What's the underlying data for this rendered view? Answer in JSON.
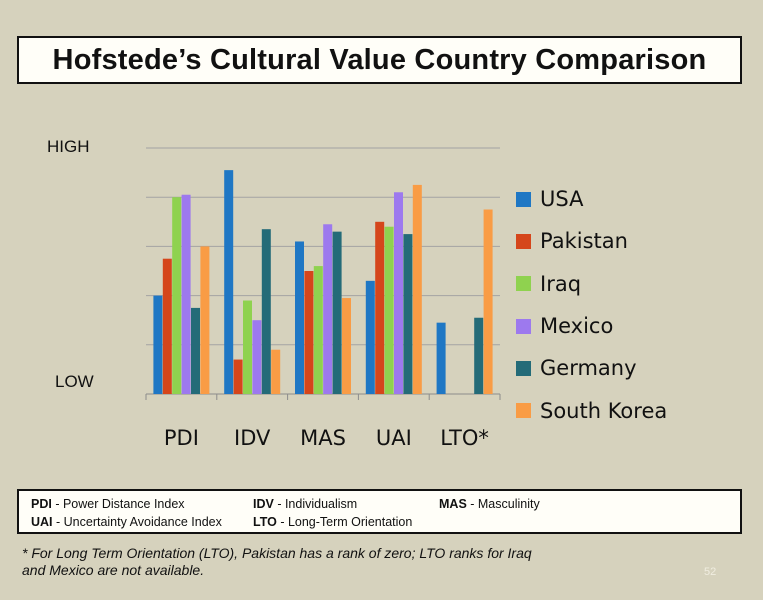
{
  "title": "Hofstede’s Cultural Value Country Comparison",
  "chart_data": {
    "type": "bar",
    "title": "Hofstede’s Cultural Value Country Comparison",
    "ylabel_high": "HIGH",
    "ylabel_low": "LOW",
    "ylim": [
      0,
      100
    ],
    "grid": true,
    "legend_position": "right",
    "categories": [
      "PDI",
      "IDV",
      "MAS",
      "UAI",
      "LTO*"
    ],
    "series": [
      {
        "name": "USA",
        "color": "#1f77c4",
        "values": [
          40,
          91,
          62,
          46,
          29
        ]
      },
      {
        "name": "Pakistan",
        "color": "#d5461b",
        "values": [
          55,
          14,
          50,
          70,
          0
        ]
      },
      {
        "name": "Iraq",
        "color": "#8fd24f",
        "values": [
          80,
          38,
          52,
          68,
          null
        ]
      },
      {
        "name": "Mexico",
        "color": "#9d79ee",
        "values": [
          81,
          30,
          69,
          82,
          null
        ]
      },
      {
        "name": "Germany",
        "color": "#246b78",
        "values": [
          35,
          67,
          66,
          65,
          31
        ]
      },
      {
        "name": "South Korea",
        "color": "#f99c45",
        "values": [
          60,
          18,
          39,
          85,
          75
        ]
      }
    ]
  },
  "definitions": [
    {
      "abbr": "PDI",
      "text": " - Power Distance Index"
    },
    {
      "abbr": "IDV",
      "text": " - Individualism"
    },
    {
      "abbr": "MAS",
      "text": " - Masculinity"
    },
    {
      "abbr": "UAI",
      "text": " - Uncertainty Avoidance Index"
    },
    {
      "abbr": "LTO",
      "text": " - Long-Term Orientation"
    }
  ],
  "footnote_line1": "* For Long Term Orientation (LTO), Pakistan has a rank of zero; LTO ranks for Iraq",
  "footnote_line2": "and Mexico are not available.",
  "page_number": "52"
}
